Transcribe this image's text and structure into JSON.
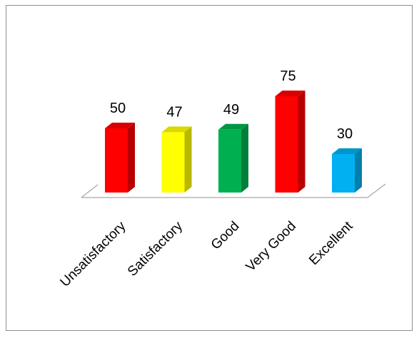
{
  "chart_data": {
    "type": "bar",
    "categories": [
      "Unsatisfactory",
      "Satisfactory",
      "Good",
      "Very Good",
      "Excellent"
    ],
    "values": [
      50,
      47,
      49,
      75,
      30
    ],
    "colors": [
      "#ff0000",
      "#ffff00",
      "#00b050",
      "#ff0000",
      "#00b0f0"
    ],
    "title": "",
    "xlabel": "",
    "ylabel": "",
    "ylim": [
      0,
      80
    ],
    "grid": false,
    "legend": "none",
    "style": "3d-column"
  }
}
